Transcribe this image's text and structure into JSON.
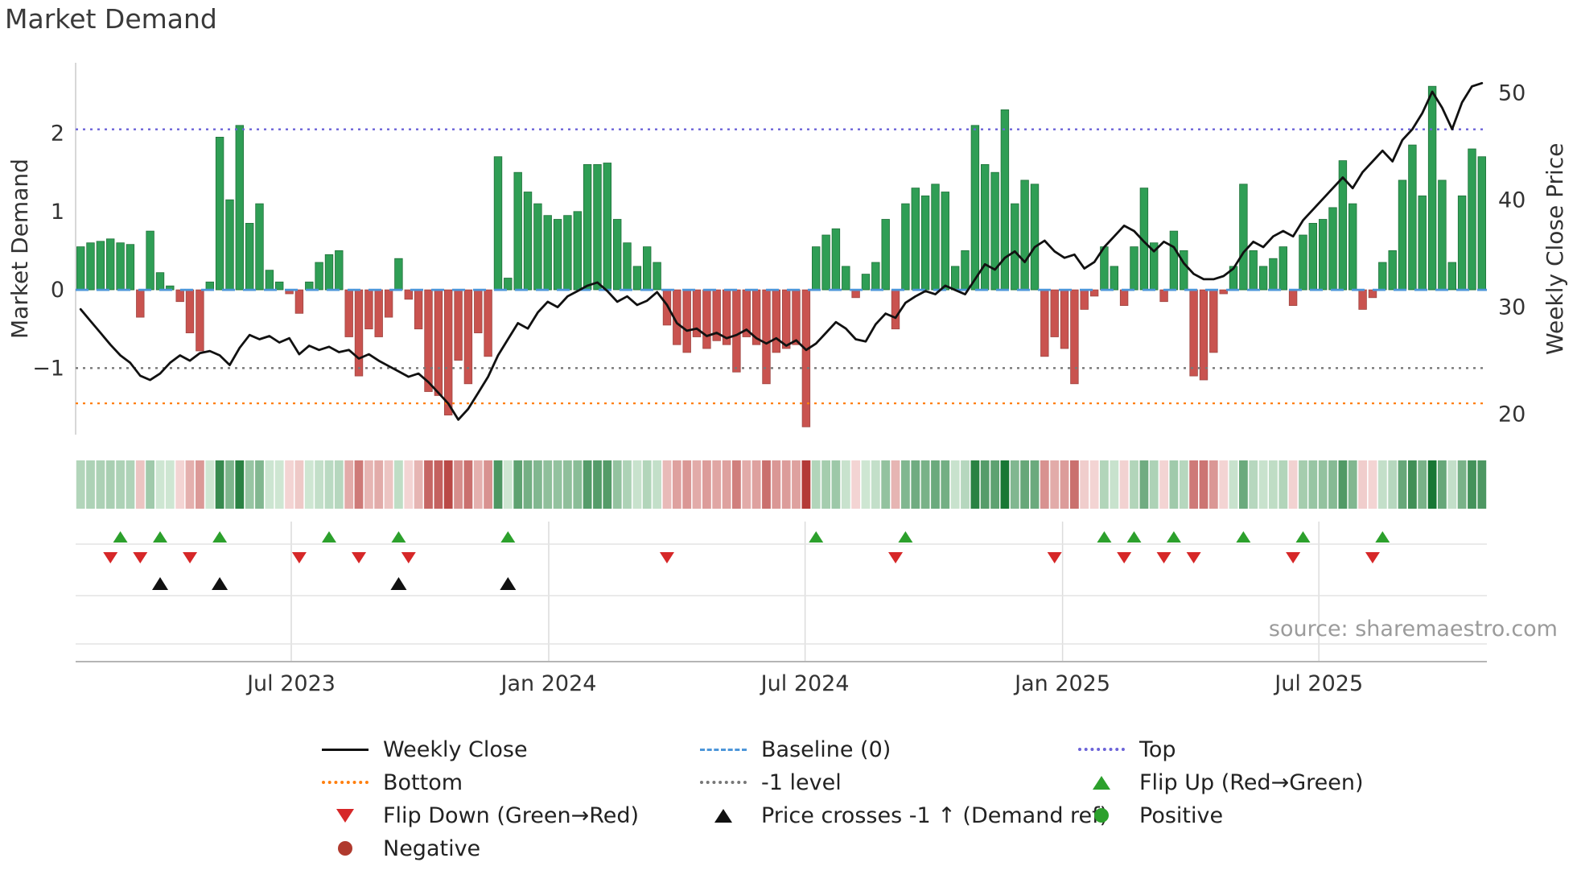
{
  "title": "Market Demand",
  "source": "source: sharemaestro.com",
  "axes": {
    "left_label": "Market Demand",
    "right_label": "Weekly Close Price",
    "left_ticks": [
      {
        "label": "2",
        "value": 2
      },
      {
        "label": "1",
        "value": 1
      },
      {
        "label": "0",
        "value": 0
      },
      {
        "label": "−1",
        "value": -1
      }
    ],
    "right_ticks": [
      {
        "label": "50",
        "value": 50
      },
      {
        "label": "40",
        "value": 40
      },
      {
        "label": "30",
        "value": 30
      },
      {
        "label": "20",
        "value": 20
      }
    ],
    "x_ticks": [
      {
        "label": "Jul 2023",
        "week": 21.2
      },
      {
        "label": "Jan 2024",
        "week": 47.1
      },
      {
        "label": "Jul 2024",
        "week": 72.9
      },
      {
        "label": "Jan 2025",
        "week": 98.8
      },
      {
        "label": "Jul 2025",
        "week": 124.6
      }
    ]
  },
  "colors": {
    "bar_positive": "#2f9e55",
    "bar_positive_edge": "#20713a",
    "bar_negative": "#c9534f",
    "bar_negative_edge": "#9e4743",
    "price_line": "#111111",
    "top_line": "#6b63d8",
    "baseline": "#4d96d9",
    "minus1_line": "#777777",
    "bottom_line": "#ff7f0e",
    "flip_up": "#2ca02c",
    "flip_down": "#d62728",
    "price_cross": "#111111",
    "positive_dot": "#2ca02c",
    "negative_dot": "#b03a2e"
  },
  "legend": {
    "items": [
      {
        "id": "weekly-close",
        "label": "Weekly Close",
        "symbol": "solid-line",
        "color": "#111111"
      },
      {
        "id": "baseline",
        "label": "Baseline (0)",
        "symbol": "dashed-line",
        "color": "#4d96d9"
      },
      {
        "id": "top",
        "label": "Top",
        "symbol": "dotted-line",
        "color": "#6b63d8"
      },
      {
        "id": "bottom",
        "label": "Bottom",
        "symbol": "dotted-line",
        "color": "#ff7f0e"
      },
      {
        "id": "minus1-level",
        "label": "-1 level",
        "symbol": "dotted-line",
        "color": "#777777"
      },
      {
        "id": "flip-up",
        "label": "Flip Up (Red→Green)",
        "symbol": "triangle-up",
        "color": "#2ca02c"
      },
      {
        "id": "flip-down",
        "label": "Flip Down (Green→Red)",
        "symbol": "triangle-down",
        "color": "#d62728"
      },
      {
        "id": "price-cross",
        "label": "Price crosses -1 ↑ (Demand ref)",
        "symbol": "triangle-up",
        "color": "#111111"
      },
      {
        "id": "positive",
        "label": "Positive",
        "symbol": "circle",
        "color": "#2ca02c"
      },
      {
        "id": "negative",
        "label": "Negative",
        "symbol": "circle",
        "color": "#b03a2e"
      }
    ]
  },
  "chart_data": {
    "type": "bar+line",
    "x_unit": "week index (weekly bars, left edge ≈ early 2023, right edge ≈ late 2025)",
    "n_weeks": 142,
    "left_ylim": [
      -1.85,
      2.9
    ],
    "right_ylim": [
      18.1,
      52.8
    ],
    "demand": [
      0.55,
      0.6,
      0.62,
      0.65,
      0.6,
      0.58,
      -0.35,
      0.75,
      0.22,
      0.05,
      -0.15,
      -0.55,
      -0.78,
      0.1,
      1.95,
      1.15,
      2.1,
      0.85,
      1.1,
      0.25,
      0.1,
      -0.05,
      -0.3,
      0.1,
      0.35,
      0.45,
      0.5,
      -0.6,
      -1.1,
      -0.5,
      -0.6,
      -0.35,
      0.4,
      -0.12,
      -0.5,
      -1.3,
      -1.35,
      -1.6,
      -0.9,
      -1.2,
      -0.55,
      -0.85,
      1.7,
      0.15,
      1.5,
      1.25,
      1.1,
      0.95,
      0.9,
      0.95,
      1.0,
      1.6,
      1.6,
      1.62,
      0.9,
      0.6,
      0.3,
      0.55,
      0.35,
      -0.45,
      -0.7,
      -0.8,
      -0.6,
      -0.75,
      -0.65,
      -0.7,
      -1.05,
      -0.6,
      -0.7,
      -1.2,
      -0.8,
      -0.75,
      -0.7,
      -1.75,
      0.55,
      0.7,
      0.78,
      0.3,
      -0.1,
      0.2,
      0.35,
      0.9,
      -0.5,
      1.1,
      1.3,
      1.2,
      1.35,
      1.25,
      0.3,
      0.5,
      2.1,
      1.6,
      1.5,
      2.3,
      1.1,
      1.4,
      1.35,
      -0.85,
      -0.6,
      -0.75,
      -1.2,
      -0.25,
      -0.08,
      0.55,
      0.3,
      -0.2,
      0.55,
      1.3,
      0.6,
      -0.15,
      0.75,
      0.5,
      -1.1,
      -1.15,
      -0.8,
      -0.05,
      0.3,
      1.35,
      0.5,
      0.3,
      0.4,
      0.55,
      -0.2,
      0.7,
      0.85,
      0.9,
      1.05,
      1.65,
      1.1,
      -0.25,
      -0.1,
      0.35,
      0.5,
      1.4,
      1.85,
      1.2,
      2.6,
      1.4,
      0.35,
      1.2,
      1.8,
      1.7
    ],
    "close": [
      29.8,
      28.7,
      27.6,
      26.5,
      25.5,
      24.8,
      23.6,
      23.2,
      23.8,
      24.8,
      25.5,
      25.0,
      25.7,
      25.9,
      25.5,
      24.6,
      26.2,
      27.4,
      27.0,
      27.3,
      26.7,
      27.1,
      25.6,
      26.4,
      26.0,
      26.3,
      25.8,
      26.0,
      25.2,
      25.6,
      25.0,
      24.5,
      24.0,
      23.5,
      23.8,
      23.0,
      22.0,
      21.0,
      19.5,
      20.5,
      22.0,
      23.5,
      25.5,
      27.0,
      28.5,
      28.0,
      29.5,
      30.5,
      30.0,
      31.0,
      31.5,
      32.0,
      32.3,
      31.5,
      30.5,
      31.0,
      30.2,
      30.6,
      31.4,
      30.2,
      28.5,
      27.8,
      28.0,
      27.3,
      27.6,
      27.1,
      27.4,
      27.9,
      27.1,
      26.6,
      27.1,
      26.4,
      26.9,
      26.0,
      26.6,
      27.6,
      28.6,
      28.0,
      27.0,
      26.8,
      28.4,
      29.4,
      29.0,
      30.4,
      31.0,
      31.5,
      31.2,
      32.0,
      31.6,
      31.2,
      32.6,
      34.0,
      33.5,
      34.6,
      35.2,
      34.2,
      35.6,
      36.2,
      35.2,
      34.6,
      34.9,
      33.6,
      34.2,
      35.6,
      36.6,
      37.6,
      37.1,
      36.1,
      35.2,
      36.1,
      35.6,
      34.1,
      33.1,
      32.6,
      32.6,
      32.9,
      33.6,
      35.1,
      36.1,
      35.6,
      36.6,
      37.1,
      36.6,
      38.1,
      39.1,
      40.1,
      41.1,
      42.1,
      41.1,
      42.6,
      43.6,
      44.6,
      43.6,
      45.6,
      46.6,
      48.1,
      50.1,
      48.6,
      46.6,
      49.1,
      50.6,
      50.9
    ],
    "reference_lines": [
      {
        "name": "Top",
        "axis": "left",
        "value": 2.05,
        "style": "dotted",
        "color": "#6b63d8"
      },
      {
        "name": "Baseline (0)",
        "axis": "left",
        "value": 0,
        "style": "dashed",
        "color": "#4d96d9"
      },
      {
        "name": "-1 level",
        "axis": "left",
        "value": -1,
        "style": "dotted",
        "color": "#777777"
      },
      {
        "name": "Bottom",
        "axis": "left",
        "value": -1.45,
        "style": "dotted",
        "color": "#ff7f0e"
      }
    ],
    "markers": {
      "flip_up_weeks": [
        4,
        8,
        14,
        25,
        32,
        43,
        74,
        83,
        103,
        106,
        110,
        117,
        123,
        131
      ],
      "flip_down_weeks": [
        3,
        6,
        11,
        22,
        28,
        33,
        59,
        82,
        98,
        105,
        109,
        112,
        122,
        130
      ],
      "price_cross_up_weeks": [
        8,
        14,
        32,
        43
      ]
    },
    "heatmap": {
      "derived_from": "demand",
      "positive_max": 2.6,
      "negative_max": 1.75
    }
  }
}
